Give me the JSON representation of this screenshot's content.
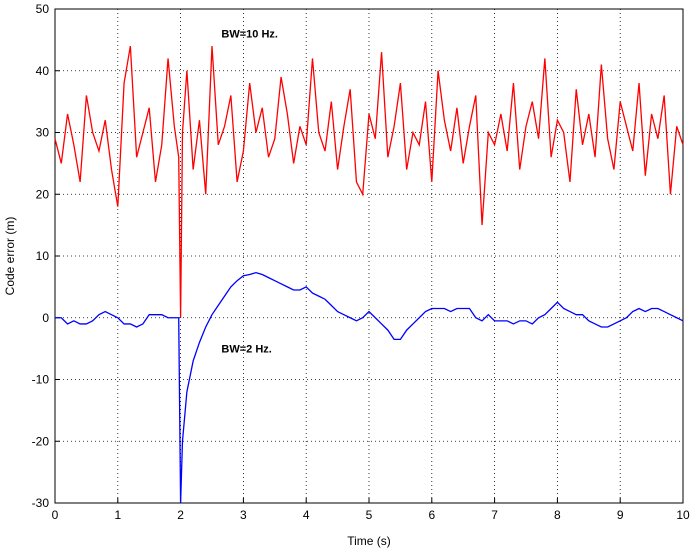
{
  "chart_data": {
    "type": "line",
    "xlabel": "Time (s)",
    "ylabel": "Code error (m)",
    "annotations": [
      {
        "text": "BW=10 Hz.",
        "x": 2.65,
        "y": 46
      },
      {
        "text": "BW=2 Hz.",
        "x": 2.65,
        "y": -5
      }
    ],
    "x": [
      0,
      0.1,
      0.2,
      0.3,
      0.4,
      0.5,
      0.6,
      0.7,
      0.8,
      0.9,
      1,
      1.1,
      1.2,
      1.3,
      1.4,
      1.5,
      1.6,
      1.7,
      1.8,
      1.9,
      1.97,
      2,
      2.03,
      2.1,
      2.2,
      2.3,
      2.4,
      2.5,
      2.6,
      2.7,
      2.8,
      2.9,
      3,
      3.1,
      3.2,
      3.3,
      3.4,
      3.5,
      3.6,
      3.7,
      3.8,
      3.9,
      4,
      4.1,
      4.2,
      4.3,
      4.4,
      4.5,
      4.6,
      4.7,
      4.8,
      4.9,
      5,
      5.1,
      5.2,
      5.3,
      5.4,
      5.5,
      5.6,
      5.7,
      5.8,
      5.9,
      6,
      6.1,
      6.2,
      6.3,
      6.4,
      6.5,
      6.6,
      6.7,
      6.8,
      6.9,
      7,
      7.1,
      7.2,
      7.3,
      7.4,
      7.5,
      7.6,
      7.7,
      7.8,
      7.9,
      8,
      8.1,
      8.2,
      8.3,
      8.4,
      8.5,
      8.6,
      8.7,
      8.8,
      8.9,
      9,
      9.1,
      9.2,
      9.3,
      9.4,
      9.5,
      9.6,
      9.7,
      9.8,
      9.9,
      10
    ],
    "series": [
      {
        "name": "BW=10 Hz.",
        "color": "#ff0000",
        "values": [
          29,
          25,
          33,
          28,
          22,
          36,
          30,
          27,
          32,
          24,
          18,
          38,
          44,
          26,
          30,
          34,
          22,
          28,
          42,
          31,
          26,
          0,
          30,
          40,
          24,
          32,
          20,
          44,
          28,
          31,
          36,
          22,
          27,
          38,
          30,
          34,
          26,
          29,
          39,
          33,
          25,
          31,
          28,
          42,
          30,
          27,
          35,
          24,
          31,
          37,
          22,
          20,
          33,
          29,
          43,
          26,
          31,
          38,
          24,
          30,
          28,
          35,
          22,
          40,
          32,
          27,
          34,
          25,
          31,
          36,
          15,
          30,
          28,
          33,
          27,
          38,
          24,
          31,
          35,
          29,
          42,
          26,
          32,
          30,
          22,
          37,
          28,
          33,
          26,
          41,
          29,
          24,
          35,
          31,
          27,
          38,
          23,
          33,
          29,
          36,
          20,
          31,
          28
        ]
      },
      {
        "name": "BW=2 Hz.",
        "color": "#0000ff",
        "values": [
          0,
          0,
          -1,
          -0.5,
          -1,
          -1,
          -0.5,
          0.5,
          1,
          0.5,
          0,
          -1,
          -1,
          -1.5,
          -1,
          0.5,
          0.5,
          0.5,
          0,
          0,
          0,
          -30,
          -20,
          -12,
          -7,
          -4,
          -1.5,
          0.5,
          2,
          3.5,
          5,
          6,
          6.8,
          7,
          7.3,
          7,
          6.5,
          6,
          5.5,
          5,
          4.5,
          4.5,
          5,
          4,
          3.5,
          3,
          2,
          1,
          0.5,
          0,
          -0.5,
          0,
          1,
          0,
          -1,
          -2,
          -3.5,
          -3.5,
          -2,
          -1,
          0,
          1,
          1.5,
          1.5,
          1.5,
          1,
          1.5,
          1.5,
          1.5,
          0,
          -0.5,
          0.5,
          -0.5,
          -0.5,
          -0.5,
          -1,
          -0.5,
          -0.5,
          -1,
          0,
          0.5,
          1.5,
          2.5,
          1.5,
          1,
          0.5,
          0.5,
          -0.5,
          -1,
          -1.5,
          -1.5,
          -1,
          -0.5,
          0,
          1,
          1.5,
          1,
          1.5,
          1.5,
          1,
          0.5,
          0,
          -0.5
        ]
      }
    ],
    "xlim": [
      0,
      10
    ],
    "xticks": [
      0,
      1,
      2,
      3,
      4,
      5,
      6,
      7,
      8,
      9,
      10
    ],
    "ylim": [
      -30,
      50
    ],
    "yticks": [
      -30,
      -20,
      -10,
      0,
      10,
      20,
      30,
      40,
      50
    ],
    "grid": true
  }
}
